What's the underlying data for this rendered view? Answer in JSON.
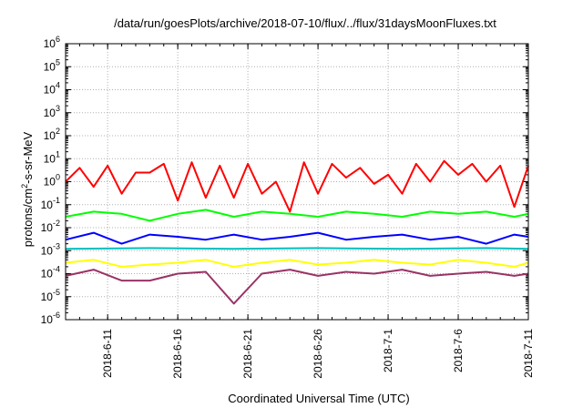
{
  "chart_data": {
    "type": "line",
    "title": "/data/run/goesPlots/archive/2018-07-10/flux/../flux/31daysMoonFluxes.txt",
    "xlabel": "Coordinated Universal Time (UTC)",
    "ylabel": {
      "prefix": "protons/cm",
      "sup": "2",
      "suffix": "-s-sr-MeV"
    },
    "yscale": "log",
    "ylim": [
      1e-06,
      1000000.0
    ],
    "xlim": [
      "2018-06-08",
      "2018-07-11"
    ],
    "grid": true,
    "x_ticks": [
      "2018-6-11",
      "2018-6-16",
      "2018-6-21",
      "2018-6-26",
      "2018-7-1",
      "2018-7-6",
      "2018-7-11"
    ],
    "y_ticks": [
      {
        "base": "10",
        "exp": "-6"
      },
      {
        "base": "10",
        "exp": "-5"
      },
      {
        "base": "10",
        "exp": "-4"
      },
      {
        "base": "10",
        "exp": "-3"
      },
      {
        "base": "10",
        "exp": "-2"
      },
      {
        "base": "10",
        "exp": "-1"
      },
      {
        "base": "10",
        "exp": "0"
      },
      {
        "base": "10",
        "exp": "1"
      },
      {
        "base": "10",
        "exp": "2"
      },
      {
        "base": "10",
        "exp": "3"
      },
      {
        "base": "10",
        "exp": "4"
      },
      {
        "base": "10",
        "exp": "5"
      },
      {
        "base": "10",
        "exp": "6"
      }
    ],
    "series": [
      {
        "color": "#ff0000",
        "x": [
          "2018-06-08",
          "2018-06-09",
          "2018-06-10",
          "2018-06-11",
          "2018-06-12",
          "2018-06-13",
          "2018-06-14",
          "2018-06-15",
          "2018-06-16",
          "2018-06-17",
          "2018-06-18",
          "2018-06-19",
          "2018-06-20",
          "2018-06-21",
          "2018-06-22",
          "2018-06-23",
          "2018-06-24",
          "2018-06-25",
          "2018-06-26",
          "2018-06-27",
          "2018-06-28",
          "2018-06-29",
          "2018-06-30",
          "2018-07-01",
          "2018-07-02",
          "2018-07-03",
          "2018-07-04",
          "2018-07-05",
          "2018-07-06",
          "2018-07-07",
          "2018-07-08",
          "2018-07-09",
          "2018-07-10",
          "2018-07-11"
        ],
        "y": [
          1,
          4,
          0.6,
          5,
          0.3,
          2.5,
          2.5,
          6,
          0.15,
          7,
          0.2,
          5,
          0.2,
          6,
          0.3,
          1,
          0.05,
          7,
          0.3,
          6,
          1.5,
          4,
          0.8,
          2,
          0.3,
          6,
          1,
          8,
          2,
          6,
          1,
          5,
          0.08,
          5
        ]
      },
      {
        "color": "#00ff00",
        "x": [
          "2018-06-08",
          "2018-06-10",
          "2018-06-12",
          "2018-06-14",
          "2018-06-16",
          "2018-06-18",
          "2018-06-20",
          "2018-06-22",
          "2018-06-24",
          "2018-06-26",
          "2018-06-28",
          "2018-06-30",
          "2018-07-02",
          "2018-07-04",
          "2018-07-06",
          "2018-07-08",
          "2018-07-10",
          "2018-07-11"
        ],
        "y": [
          0.03,
          0.05,
          0.04,
          0.02,
          0.04,
          0.06,
          0.03,
          0.05,
          0.04,
          0.03,
          0.05,
          0.04,
          0.03,
          0.05,
          0.04,
          0.05,
          0.03,
          0.04
        ]
      },
      {
        "color": "#0000ff",
        "x": [
          "2018-06-08",
          "2018-06-10",
          "2018-06-12",
          "2018-06-14",
          "2018-06-16",
          "2018-06-18",
          "2018-06-20",
          "2018-06-22",
          "2018-06-24",
          "2018-06-26",
          "2018-06-28",
          "2018-06-30",
          "2018-07-02",
          "2018-07-04",
          "2018-07-06",
          "2018-07-08",
          "2018-07-10",
          "2018-07-11"
        ],
        "y": [
          0.003,
          0.006,
          0.002,
          0.005,
          0.004,
          0.003,
          0.005,
          0.003,
          0.004,
          0.006,
          0.003,
          0.004,
          0.005,
          0.003,
          0.004,
          0.002,
          0.005,
          0.004
        ]
      },
      {
        "color": "#00c0c0",
        "x": [
          "2018-06-08",
          "2018-06-14",
          "2018-06-20",
          "2018-06-26",
          "2018-07-02",
          "2018-07-08",
          "2018-07-11"
        ],
        "y": [
          0.0012,
          0.0013,
          0.0012,
          0.0013,
          0.0012,
          0.0013,
          0.0012
        ]
      },
      {
        "color": "#ffff00",
        "x": [
          "2018-06-08",
          "2018-06-10",
          "2018-06-12",
          "2018-06-14",
          "2018-06-16",
          "2018-06-18",
          "2018-06-20",
          "2018-06-22",
          "2018-06-24",
          "2018-06-26",
          "2018-06-28",
          "2018-06-30",
          "2018-07-02",
          "2018-07-04",
          "2018-07-06",
          "2018-07-08",
          "2018-07-10",
          "2018-07-11"
        ],
        "y": [
          0.0003,
          0.0004,
          0.0002,
          0.00025,
          0.0003,
          0.0004,
          0.0002,
          0.0003,
          0.0004,
          0.00025,
          0.0003,
          0.0004,
          0.0003,
          0.00025,
          0.0004,
          0.0003,
          0.0002,
          0.0003
        ]
      },
      {
        "color": "#993366",
        "x": [
          "2018-06-08",
          "2018-06-10",
          "2018-06-12",
          "2018-06-14",
          "2018-06-16",
          "2018-06-18",
          "2018-06-20",
          "2018-06-22",
          "2018-06-24",
          "2018-06-26",
          "2018-06-28",
          "2018-06-30",
          "2018-07-02",
          "2018-07-04",
          "2018-07-06",
          "2018-07-08",
          "2018-07-10",
          "2018-07-11"
        ],
        "y": [
          8e-05,
          0.00015,
          5e-05,
          5e-05,
          0.0001,
          0.00012,
          5e-06,
          0.0001,
          0.00015,
          8e-05,
          0.00012,
          0.0001,
          0.00015,
          8e-05,
          0.0001,
          0.00012,
          8e-05,
          0.0001
        ]
      }
    ]
  }
}
